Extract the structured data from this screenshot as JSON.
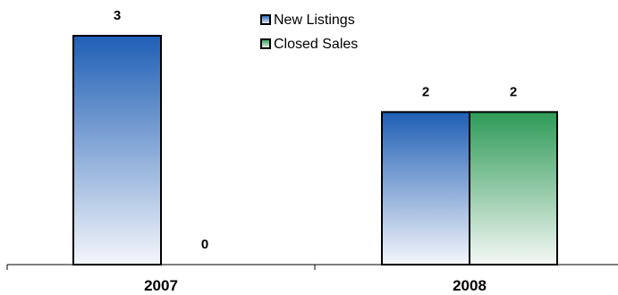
{
  "chart_data": {
    "type": "bar",
    "categories": [
      "2007",
      "2008"
    ],
    "series": [
      {
        "name": "New Listings",
        "values": [
          3,
          2
        ],
        "color_top": "#1f5fb5",
        "color_bottom": "#f4f6fb"
      },
      {
        "name": "Closed Sales",
        "values": [
          0,
          2
        ],
        "color_top": "#2e9a57",
        "color_bottom": "#f4f8f5"
      }
    ],
    "ylim": [
      0,
      3
    ],
    "grid": false,
    "legend": "top-center"
  }
}
